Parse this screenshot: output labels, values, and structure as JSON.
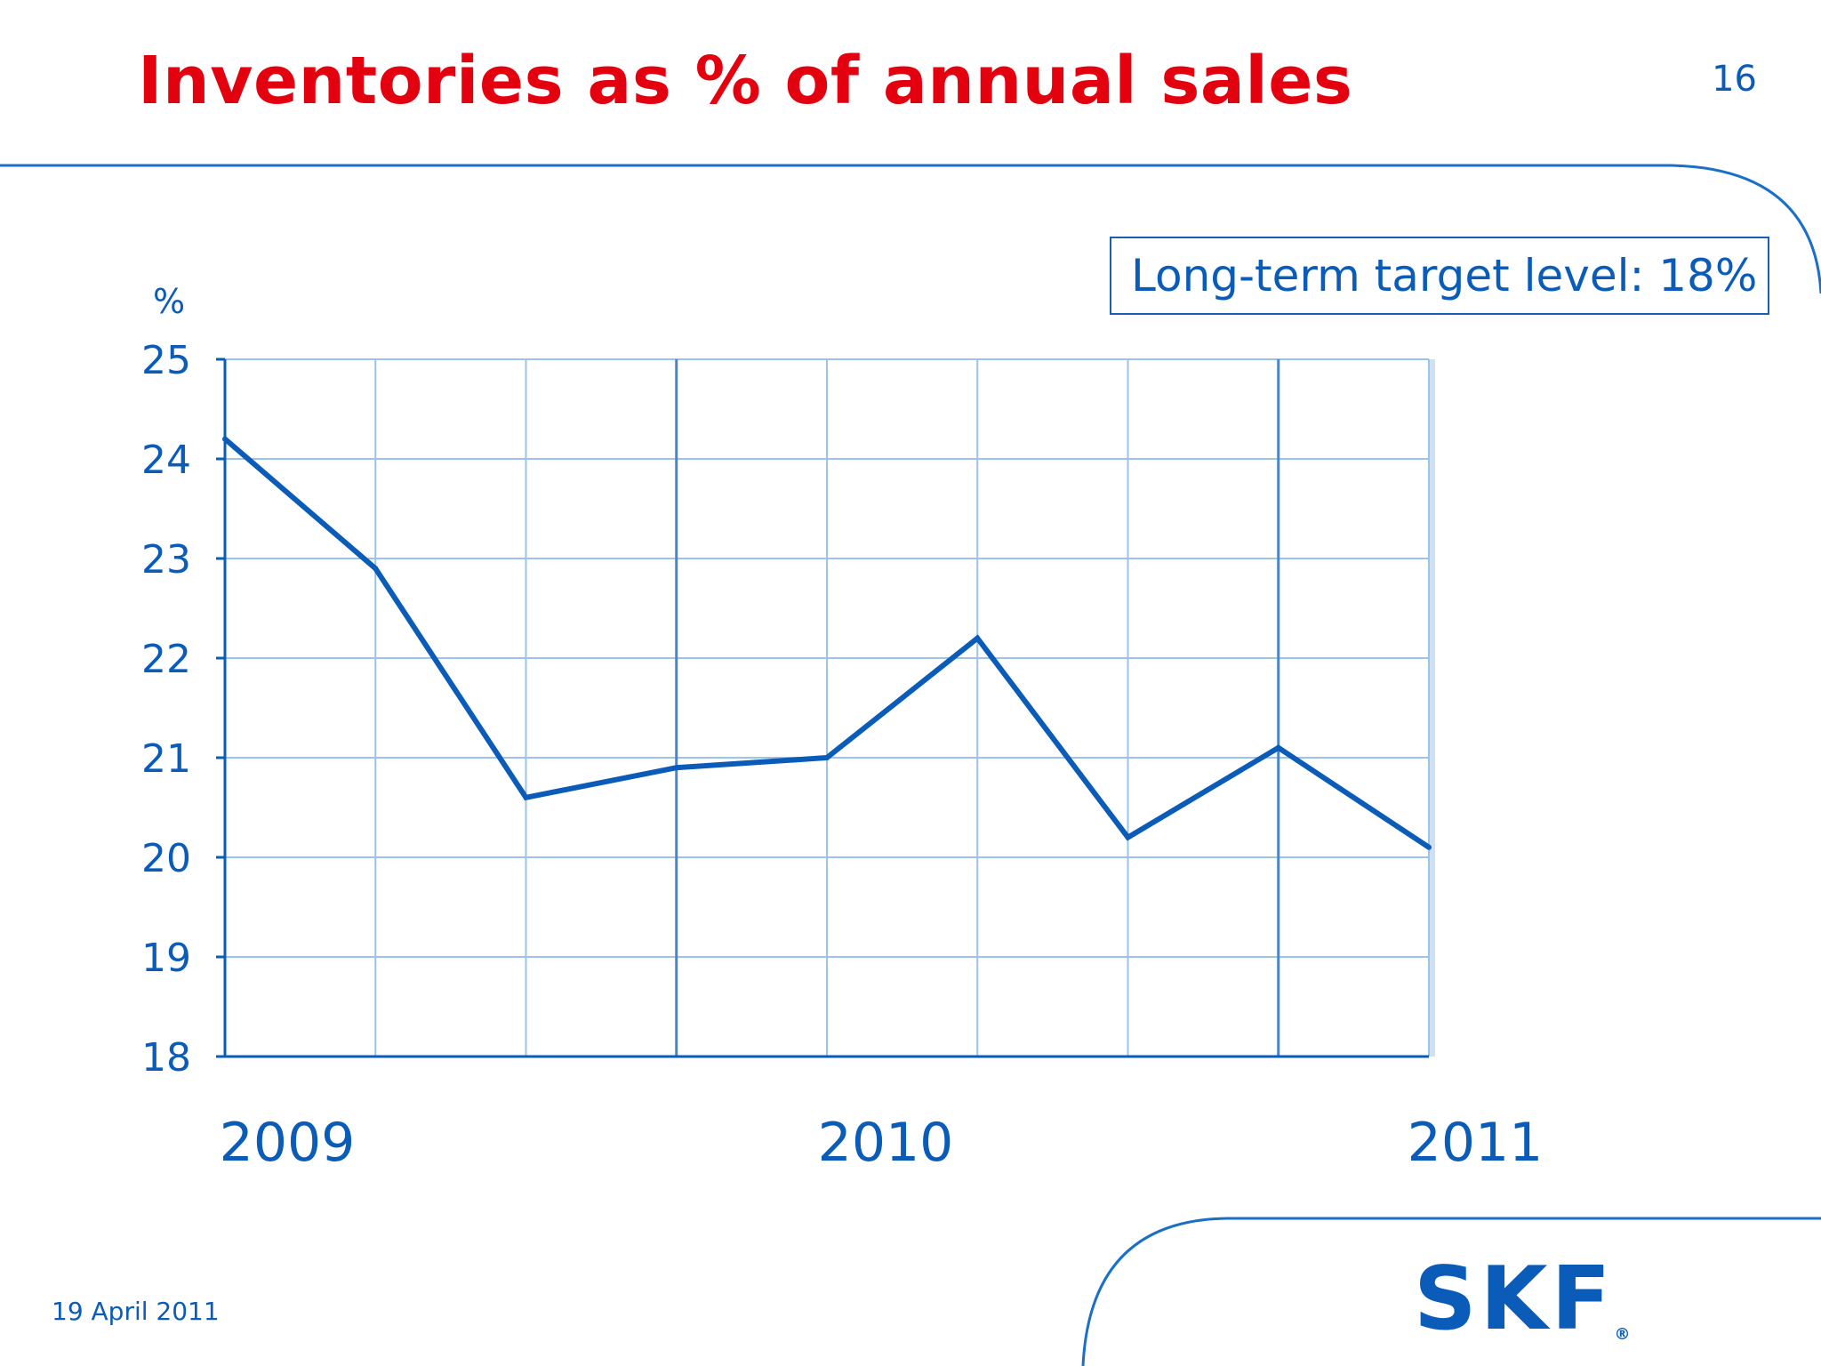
{
  "slide": {
    "title": "Inventories as % of annual sales",
    "page_number": "16",
    "footer_date": "19 April 2011",
    "annotation": "Long-term target level: 18%",
    "logo_text": "SKF",
    "logo_mark": "®"
  },
  "colors": {
    "title": "#e3000f",
    "brand_blue": "#0a5cb8",
    "line": "#0a5cb8",
    "grid": "#9cc3ea"
  },
  "chart_data": {
    "type": "line",
    "title": "",
    "xlabel": "",
    "ylabel": "%",
    "ylim": [
      18,
      25
    ],
    "yticks": [
      18,
      19,
      20,
      21,
      22,
      23,
      24,
      25
    ],
    "x_tick_labels": [
      "2009",
      "2010",
      "2011"
    ],
    "grid": true,
    "series": [
      {
        "values": [
          24.2,
          22.9,
          20.6,
          20.9,
          21.0,
          22.2,
          20.2,
          21.1,
          20.1
        ]
      }
    ]
  }
}
